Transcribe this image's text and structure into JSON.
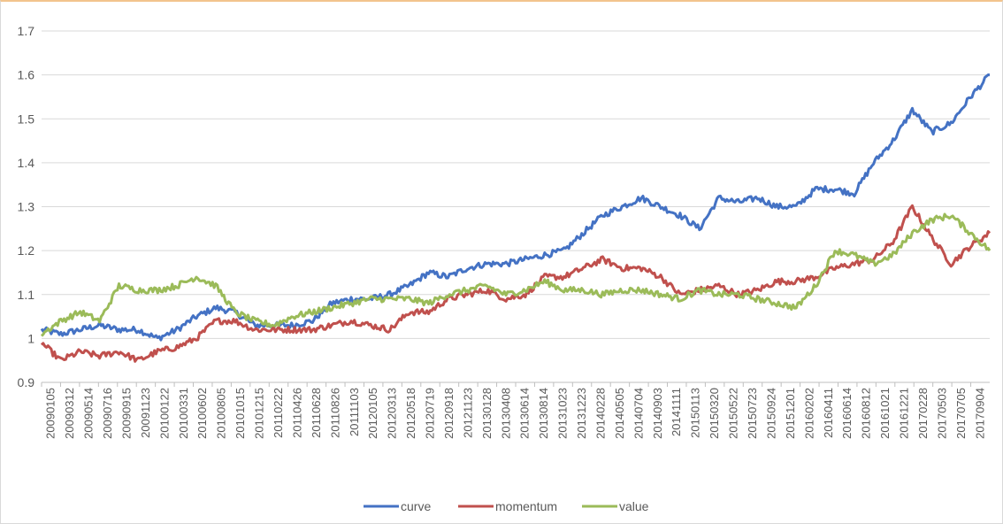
{
  "chart_data": {
    "type": "line",
    "title": "",
    "xlabel": "",
    "ylabel": "",
    "ylim": [
      0.9,
      1.7
    ],
    "yticks": [
      "0.9",
      "1",
      "1.1",
      "1.2",
      "1.3",
      "1.4",
      "1.5",
      "1.6",
      "1.7"
    ],
    "grid": true,
    "legend_position": "bottom",
    "x_tick_labels": [
      "20090105",
      "20090312",
      "20090514",
      "20090716",
      "20090915",
      "20091123",
      "20100122",
      "20100331",
      "20100602",
      "20100805",
      "20101015",
      "20101215",
      "20110222",
      "20110426",
      "20110628",
      "20110826",
      "20111103",
      "20120105",
      "20120313",
      "20120518",
      "20120719",
      "20120918",
      "20121123",
      "20130128",
      "20130408",
      "20130614",
      "20130814",
      "20131023",
      "20131223",
      "20140228",
      "20140505",
      "20140704",
      "20140903",
      "20141111",
      "20150113",
      "20150320",
      "20150522",
      "20150723",
      "20150924",
      "20151201",
      "20160202",
      "20160411",
      "20160614",
      "20160812",
      "20161021",
      "20161221",
      "20170228",
      "20170503",
      "20170705",
      "20170904"
    ],
    "series": [
      {
        "name": "curve",
        "color": "#4472c4",
        "values": [
          1.02,
          1.01,
          1.02,
          1.03,
          1.02,
          1.02,
          1.0,
          1.02,
          1.05,
          1.07,
          1.06,
          1.03,
          1.03,
          1.03,
          1.04,
          1.08,
          1.09,
          1.09,
          1.1,
          1.12,
          1.15,
          1.14,
          1.16,
          1.17,
          1.17,
          1.18,
          1.19,
          1.2,
          1.24,
          1.28,
          1.3,
          1.32,
          1.3,
          1.28,
          1.25,
          1.32,
          1.31,
          1.32,
          1.3,
          1.3,
          1.34,
          1.34,
          1.33,
          1.4,
          1.45,
          1.52,
          1.47,
          1.49,
          1.55,
          1.6
        ]
      },
      {
        "name": "momentum",
        "color": "#c0504d",
        "values": [
          0.99,
          0.95,
          0.97,
          0.96,
          0.97,
          0.95,
          0.97,
          0.98,
          1.0,
          1.04,
          1.04,
          1.02,
          1.02,
          1.02,
          1.02,
          1.03,
          1.04,
          1.03,
          1.02,
          1.06,
          1.06,
          1.09,
          1.1,
          1.11,
          1.09,
          1.1,
          1.14,
          1.14,
          1.16,
          1.18,
          1.16,
          1.16,
          1.14,
          1.1,
          1.11,
          1.12,
          1.1,
          1.11,
          1.13,
          1.13,
          1.14,
          1.16,
          1.17,
          1.18,
          1.22,
          1.3,
          1.23,
          1.17,
          1.21,
          1.24
        ]
      },
      {
        "name": "value",
        "color": "#9bbb59",
        "values": [
          1.01,
          1.04,
          1.06,
          1.04,
          1.12,
          1.11,
          1.11,
          1.12,
          1.14,
          1.12,
          1.06,
          1.04,
          1.03,
          1.05,
          1.06,
          1.07,
          1.08,
          1.09,
          1.09,
          1.09,
          1.08,
          1.1,
          1.11,
          1.12,
          1.1,
          1.11,
          1.13,
          1.11,
          1.11,
          1.1,
          1.11,
          1.11,
          1.1,
          1.09,
          1.11,
          1.1,
          1.1,
          1.09,
          1.08,
          1.07,
          1.12,
          1.2,
          1.19,
          1.17,
          1.19,
          1.24,
          1.27,
          1.28,
          1.24,
          1.2
        ]
      }
    ]
  }
}
